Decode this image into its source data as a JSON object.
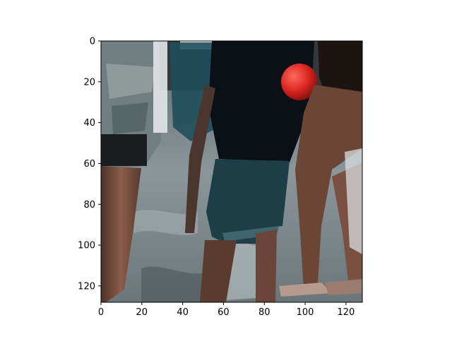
{
  "figure": {
    "kind": "image-with-pixel-axes",
    "image_description_tag": "street-crowd-legs",
    "colors": {
      "axis": "#000000",
      "background": "#ffffff",
      "dark_clothing": "#0b0f16",
      "teal_shorts": "#1d3d47",
      "skin": "#7a5040",
      "pavement": "#7f8c90",
      "red_ball": "#d8231e"
    }
  },
  "chart_data": {
    "type": "image",
    "xlim": [
      0,
      128
    ],
    "ylim": [
      128,
      0
    ],
    "x_ticks": [
      0,
      20,
      40,
      60,
      80,
      100,
      120
    ],
    "y_ticks": [
      0,
      20,
      40,
      60,
      80,
      100,
      120
    ],
    "x_tick_labels": [
      "0",
      "20",
      "40",
      "60",
      "80",
      "100",
      "120"
    ],
    "y_tick_labels": [
      "0",
      "20",
      "40",
      "60",
      "80",
      "100",
      "120"
    ],
    "title": "",
    "xlabel": "",
    "ylabel": ""
  }
}
